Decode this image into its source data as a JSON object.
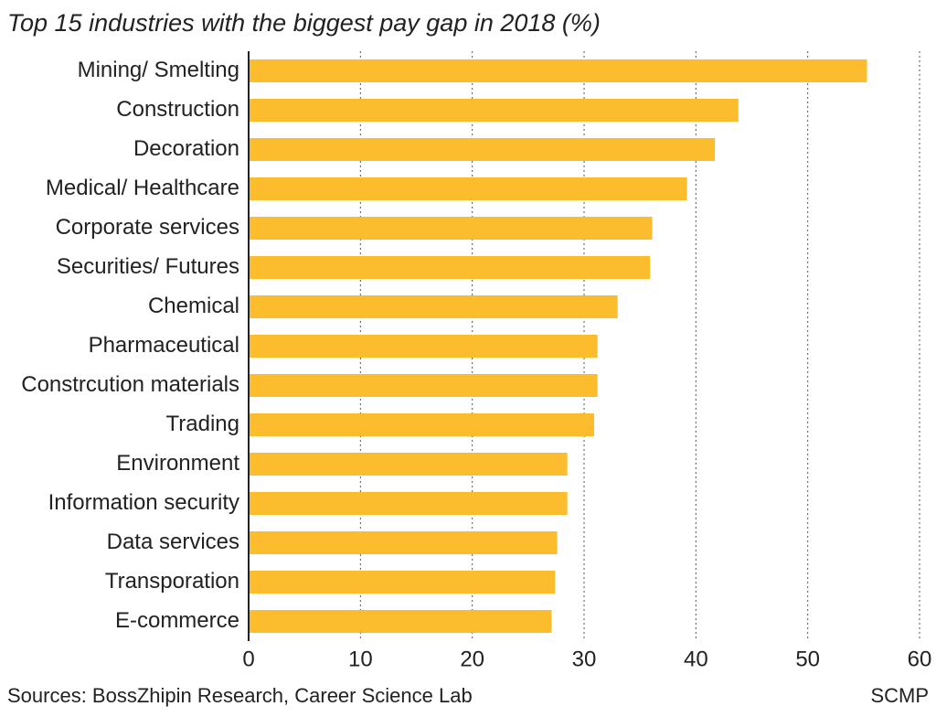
{
  "chart_data": {
    "type": "bar",
    "orientation": "horizontal",
    "title": "Top 15 industries with the biggest pay gap in 2018 (%)",
    "categories": [
      "Mining/ Smelting",
      "Construction",
      "Decoration",
      "Medical/ Healthcare",
      "Corporate services",
      "Securities/ Futures",
      "Chemical",
      "Pharmaceutical",
      "Constrcution materials",
      "Trading",
      "Environment",
      "Information security",
      "Data services",
      "Transporation",
      "E-commerce"
    ],
    "values": [
      55.3,
      43.8,
      41.7,
      39.2,
      36.1,
      35.9,
      33.0,
      31.2,
      31.2,
      30.9,
      28.5,
      28.5,
      27.6,
      27.4,
      27.1
    ],
    "color": "#fbbd2e",
    "xlim": [
      0,
      60
    ],
    "xticks": [
      0,
      10,
      20,
      30,
      40,
      50,
      60
    ],
    "grid": true,
    "source": "Sources: BossZhipin Research, Career Science Lab",
    "credit": "SCMP"
  }
}
